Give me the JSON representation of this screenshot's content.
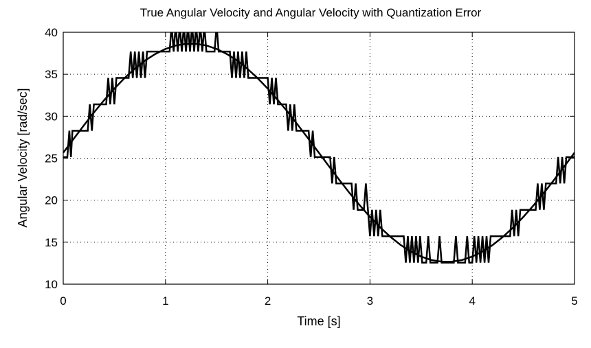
{
  "chart_data": {
    "type": "line",
    "title": "True Angular Velocity and Angular Velocity with Quantization Error",
    "xlabel": "Time [s]",
    "ylabel": "Angular Velocity [rad/sec]",
    "xlim": [
      0,
      5
    ],
    "ylim": [
      10,
      40
    ],
    "xticks": [
      "0",
      "1",
      "2",
      "3",
      "4",
      "5"
    ],
    "yticks": [
      "10",
      "15",
      "20",
      "25",
      "30",
      "35",
      "40"
    ],
    "grid": true,
    "legend": "none",
    "line_color": "#000000",
    "series": [
      {
        "t": [
          0,
          0.1,
          0.2,
          0.3,
          0.4,
          0.5,
          0.6,
          0.7,
          0.8,
          0.9,
          1.0,
          1.1,
          1.2,
          1.3,
          1.4,
          1.5,
          1.6,
          1.7,
          1.8,
          1.9,
          2.0,
          2.1,
          2.2,
          2.3,
          2.4,
          2.5,
          2.6,
          2.7,
          2.8,
          2.9,
          3.0,
          3.1,
          3.2,
          3.3,
          3.4,
          3.5,
          3.6,
          3.7,
          3.8,
          3.9,
          4.0,
          4.1,
          4.2,
          4.3,
          4.4,
          4.5,
          4.6,
          4.7,
          4.8,
          4.9,
          5.0
        ],
        "y": [
          25.65,
          27.28,
          28.88,
          30.44,
          31.91,
          33.29,
          34.55,
          35.67,
          36.63,
          37.41,
          38.01,
          38.42,
          38.62,
          38.62,
          38.42,
          38.01,
          37.41,
          36.63,
          35.67,
          34.55,
          33.29,
          31.91,
          30.44,
          28.88,
          27.28,
          25.65,
          24.02,
          22.42,
          20.86,
          19.39,
          18.01,
          16.75,
          15.63,
          14.67,
          13.89,
          13.29,
          12.88,
          12.68,
          12.68,
          12.88,
          13.29,
          13.89,
          14.67,
          15.63,
          16.75,
          18.01,
          19.39,
          20.86,
          22.42,
          24.02,
          25.65
        ]
      },
      {
        "points": [
          [
            0,
            25.13
          ],
          [
            0.04,
            25.13
          ],
          [
            0.06,
            28.27
          ],
          [
            0.075,
            25.13
          ],
          [
            0.09,
            28.27
          ],
          [
            0.24,
            28.27
          ],
          [
            0.26,
            31.42
          ],
          [
            0.28,
            28.27
          ],
          [
            0.3,
            31.42
          ],
          [
            0.42,
            31.42
          ],
          [
            0.44,
            34.56
          ],
          [
            0.46,
            31.42
          ],
          [
            0.48,
            34.56
          ],
          [
            0.5,
            31.42
          ],
          [
            0.52,
            34.56
          ],
          [
            0.64,
            34.56
          ],
          [
            0.66,
            37.7
          ],
          [
            0.68,
            34.56
          ],
          [
            0.7,
            37.7
          ],
          [
            0.72,
            34.56
          ],
          [
            0.74,
            37.7
          ],
          [
            0.76,
            34.56
          ],
          [
            0.78,
            37.7
          ],
          [
            0.8,
            34.56
          ],
          [
            0.82,
            37.7
          ],
          [
            1.04,
            37.7
          ],
          [
            1.06,
            40.84
          ],
          [
            1.08,
            37.7
          ],
          [
            1.1,
            40.84
          ],
          [
            1.12,
            37.7
          ],
          [
            1.14,
            40.84
          ],
          [
            1.16,
            37.7
          ],
          [
            1.18,
            40.84
          ],
          [
            1.2,
            37.7
          ],
          [
            1.22,
            40.84
          ],
          [
            1.24,
            37.7
          ],
          [
            1.26,
            40.84
          ],
          [
            1.28,
            37.7
          ],
          [
            1.3,
            40.84
          ],
          [
            1.32,
            37.7
          ],
          [
            1.34,
            40.84
          ],
          [
            1.36,
            37.7
          ],
          [
            1.38,
            40.84
          ],
          [
            1.4,
            37.7
          ],
          [
            1.48,
            37.7
          ],
          [
            1.5,
            40.84
          ],
          [
            1.52,
            37.7
          ],
          [
            1.63,
            37.7
          ],
          [
            1.65,
            34.56
          ],
          [
            1.67,
            37.7
          ],
          [
            1.69,
            34.56
          ],
          [
            1.71,
            37.7
          ],
          [
            1.73,
            34.56
          ],
          [
            1.75,
            37.7
          ],
          [
            1.77,
            34.56
          ],
          [
            1.79,
            37.7
          ],
          [
            1.81,
            34.56
          ],
          [
            2.0,
            34.56
          ],
          [
            2.02,
            31.42
          ],
          [
            2.04,
            34.56
          ],
          [
            2.06,
            31.42
          ],
          [
            2.08,
            34.56
          ],
          [
            2.1,
            31.42
          ],
          [
            2.18,
            31.42
          ],
          [
            2.2,
            28.27
          ],
          [
            2.22,
            31.42
          ],
          [
            2.24,
            28.27
          ],
          [
            2.26,
            31.42
          ],
          [
            2.28,
            28.27
          ],
          [
            2.4,
            28.27
          ],
          [
            2.42,
            25.13
          ],
          [
            2.44,
            28.27
          ],
          [
            2.46,
            25.13
          ],
          [
            2.61,
            25.13
          ],
          [
            2.63,
            21.99
          ],
          [
            2.65,
            25.13
          ],
          [
            2.67,
            21.99
          ],
          [
            2.82,
            21.99
          ],
          [
            2.84,
            18.85
          ],
          [
            2.86,
            21.99
          ],
          [
            2.88,
            18.85
          ],
          [
            2.94,
            18.85
          ],
          [
            2.96,
            21.99
          ],
          [
            2.98,
            18.85
          ],
          [
            3.0,
            15.71
          ],
          [
            3.02,
            18.85
          ],
          [
            3.04,
            15.71
          ],
          [
            3.06,
            18.85
          ],
          [
            3.08,
            15.71
          ],
          [
            3.1,
            18.85
          ],
          [
            3.12,
            15.71
          ],
          [
            3.33,
            15.71
          ],
          [
            3.35,
            12.57
          ],
          [
            3.37,
            15.71
          ],
          [
            3.39,
            12.57
          ],
          [
            3.41,
            15.71
          ],
          [
            3.43,
            12.57
          ],
          [
            3.45,
            15.71
          ],
          [
            3.47,
            12.57
          ],
          [
            3.49,
            15.71
          ],
          [
            3.51,
            12.57
          ],
          [
            3.55,
            12.57
          ],
          [
            3.57,
            15.71
          ],
          [
            3.59,
            12.57
          ],
          [
            3.66,
            12.57
          ],
          [
            3.68,
            15.71
          ],
          [
            3.7,
            12.57
          ],
          [
            3.82,
            12.57
          ],
          [
            3.84,
            15.71
          ],
          [
            3.86,
            12.57
          ],
          [
            3.93,
            12.57
          ],
          [
            3.95,
            15.71
          ],
          [
            3.97,
            12.57
          ],
          [
            4.0,
            12.57
          ],
          [
            4.02,
            15.71
          ],
          [
            4.04,
            12.57
          ],
          [
            4.06,
            15.71
          ],
          [
            4.08,
            12.57
          ],
          [
            4.1,
            15.71
          ],
          [
            4.12,
            12.57
          ],
          [
            4.14,
            15.71
          ],
          [
            4.16,
            12.57
          ],
          [
            4.18,
            15.71
          ],
          [
            4.37,
            15.71
          ],
          [
            4.39,
            18.85
          ],
          [
            4.41,
            15.71
          ],
          [
            4.43,
            18.85
          ],
          [
            4.45,
            15.71
          ],
          [
            4.47,
            18.85
          ],
          [
            4.62,
            18.85
          ],
          [
            4.64,
            21.99
          ],
          [
            4.66,
            18.85
          ],
          [
            4.68,
            21.99
          ],
          [
            4.7,
            18.85
          ],
          [
            4.72,
            21.99
          ],
          [
            4.82,
            21.99
          ],
          [
            4.84,
            25.13
          ],
          [
            4.86,
            21.99
          ],
          [
            4.88,
            25.13
          ],
          [
            4.9,
            21.99
          ],
          [
            4.92,
            25.13
          ],
          [
            5.0,
            25.13
          ]
        ]
      }
    ]
  }
}
